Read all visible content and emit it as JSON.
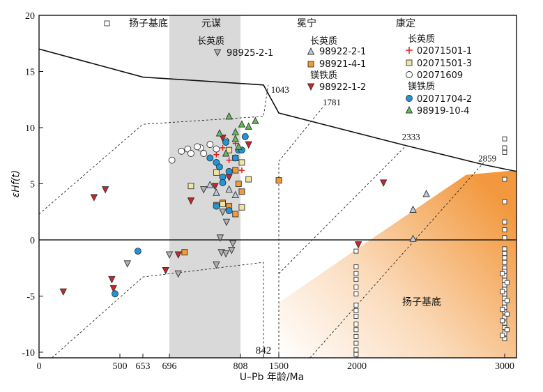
{
  "chart_data": {
    "type": "scatter",
    "xlabel": "U–Pb 年龄/Ma",
    "ylabel": "εHf(t)",
    "xlim": [
      0,
      3050
    ],
    "ylim": [
      -10.5,
      20
    ],
    "x_ticks": [
      "0",
      "500",
      "653",
      "696",
      "808",
      "842",
      "1500",
      "2000",
      "3000"
    ],
    "y_ticks": [
      "20",
      "15",
      "10",
      "5",
      "0",
      "-5",
      "-10"
    ],
    "region_labels": {
      "yangtze": "扬子基底",
      "yuanmou": "元谋",
      "mianning": "冕宁",
      "kangding": "康定"
    },
    "legend": {
      "basement": "扬子基底",
      "yuanmou_felsic_title": "长英质",
      "yuanmou_felsic": "98925-2-1",
      "mianning_felsic_title": "长英质",
      "mianning_felsic_1": "98922-2-1",
      "mianning_felsic_2": "98921-4-1",
      "mianning_mafic_title": "镁铁质",
      "mianning_mafic": "98922-1-2",
      "kangding_felsic_title": "长英质",
      "kangding_felsic_1": "02071501-1",
      "kangding_felsic_2": "02071501-3",
      "kangding_felsic_3": "02071609",
      "kangding_mafic_title": "镁铁质",
      "kangding_mafic_1": "02071704-2",
      "kangding_mafic_2": "98919-10-4"
    },
    "reference_labels": [
      "1043",
      "1781",
      "2333",
      "2859",
      "842"
    ],
    "field_label": "扬子基底",
    "colors": {
      "grey_band": "#d9d9d9",
      "basement_field": "#f2993f",
      "orange_square": "#f29a3c",
      "red_triangle": "#c8262c",
      "blue_circle": "#2096d6",
      "green_triangle": "#63ba58",
      "yellow_square": "#efe4a3",
      "grey_triangle": "#b0b0b0",
      "lightblue_triangle": "#bcc8dc",
      "red_cross": "#e31d1d"
    },
    "series": [
      {
        "name": "98925-2-1",
        "marker": "triangle-down",
        "fill": "#b0b0b0",
        "points": [
          [
            550,
            -2.1
          ],
          [
            696,
            -1.3
          ],
          [
            710,
            -3.0
          ],
          [
            770,
            -2.2
          ],
          [
            776,
            0.2
          ],
          [
            778,
            -1.1
          ],
          [
            785,
            -1.2
          ],
          [
            794,
            -0.9
          ],
          [
            796,
            -0.3
          ],
          [
            780,
            2.5
          ],
          [
            786,
            1.6
          ],
          [
            750,
            4.5
          ]
        ]
      },
      {
        "name": "98922-2-1",
        "marker": "triangle-up",
        "fill": "#bcc8dc",
        "points": [
          [
            760,
            4.9
          ],
          [
            770,
            4.2
          ],
          [
            790,
            4.5
          ],
          [
            800,
            4.0
          ],
          [
            2380,
            0.1
          ],
          [
            2380,
            2.7
          ],
          [
            2470,
            4.1
          ]
        ]
      },
      {
        "name": "98921-4-1",
        "marker": "square",
        "fill": "#f29a3c",
        "points": [
          [
            770,
            3.1
          ],
          [
            780,
            3.3
          ],
          [
            790,
            3.0
          ],
          [
            800,
            2.3
          ],
          [
            810,
            4.3
          ],
          [
            805,
            5.0
          ],
          [
            800,
            6.2
          ],
          [
            1500,
            5.3
          ],
          [
            720,
            -1.1
          ]
        ]
      },
      {
        "name": "98922-1-2",
        "marker": "triangle-down",
        "fill": "#c8262c",
        "points": [
          [
            150,
            -4.6
          ],
          [
            340,
            3.8
          ],
          [
            410,
            4.5
          ],
          [
            450,
            -3.5
          ],
          [
            460,
            -4.3
          ],
          [
            690,
            -2.7
          ],
          [
            710,
            -1.3
          ],
          [
            730,
            3.5
          ],
          [
            768,
            4.8
          ],
          [
            790,
            5.6
          ],
          [
            820,
            8.5
          ],
          [
            780,
            9.1
          ],
          [
            2010,
            -0.4
          ],
          [
            2180,
            5.1
          ]
        ]
      },
      {
        "name": "02071501-1",
        "marker": "cross",
        "fill": "#e31d1d",
        "points": [
          [
            770,
            7.6
          ],
          [
            790,
            7.1
          ],
          [
            780,
            8.2
          ],
          [
            800,
            8.6
          ],
          [
            815,
            9.2
          ],
          [
            810,
            6.2
          ]
        ]
      },
      {
        "name": "02071501-3",
        "marker": "square",
        "fill": "#efe4a3",
        "points": [
          [
            730,
            4.8
          ],
          [
            780,
            3.2
          ],
          [
            800,
            7.3
          ],
          [
            810,
            6.9
          ],
          [
            820,
            5.4
          ],
          [
            790,
            8.0
          ],
          [
            770,
            6.0
          ],
          [
            810,
            2.9
          ]
        ]
      },
      {
        "name": "02071609",
        "marker": "circle",
        "fill": "#ffffff",
        "points": [
          [
            700,
            7.1
          ],
          [
            715,
            7.9
          ],
          [
            725,
            8.1
          ],
          [
            730,
            7.7
          ],
          [
            745,
            8.2
          ],
          [
            760,
            8.5
          ],
          [
            770,
            8.1
          ],
          [
            785,
            8.8
          ],
          [
            750,
            7.7
          ],
          [
            740,
            8.3
          ]
        ]
      },
      {
        "name": "02071704-2",
        "marker": "circle",
        "fill": "#2096d6",
        "points": [
          [
            470,
            -4.8
          ],
          [
            620,
            -1.0
          ],
          [
            760,
            7.3
          ],
          [
            770,
            6.9
          ],
          [
            775,
            6.5
          ],
          [
            790,
            6.1
          ],
          [
            780,
            5.6
          ],
          [
            800,
            7.3
          ],
          [
            805,
            8.0
          ],
          [
            810,
            8.0
          ],
          [
            815,
            9.2
          ],
          [
            785,
            8.7
          ],
          [
            770,
            3.0
          ],
          [
            790,
            2.6
          ],
          [
            780,
            5.1
          ]
        ]
      },
      {
        "name": "98919-10-4",
        "marker": "triangle-up",
        "fill": "#63ba58",
        "points": [
          [
            775,
            9.5
          ],
          [
            790,
            11.0
          ],
          [
            800,
            9.6
          ],
          [
            810,
            10.3
          ],
          [
            820,
            10.1
          ],
          [
            830,
            10.6
          ],
          [
            805,
            8.3
          ],
          [
            785,
            7.7
          ],
          [
            800,
            9.0
          ]
        ]
      },
      {
        "name": "扬子基底",
        "marker": "square",
        "fill": "#ffffff",
        "points": [
          [
            1995,
            -1.0
          ],
          [
            1995,
            -2.4
          ],
          [
            1995,
            -3.0
          ],
          [
            1995,
            -3.5
          ],
          [
            1995,
            -4.2
          ],
          [
            1995,
            -4.8
          ],
          [
            1995,
            -5.8
          ],
          [
            1995,
            -6.3
          ],
          [
            1995,
            -6.8
          ],
          [
            1995,
            -7.5
          ],
          [
            1995,
            -8.0
          ],
          [
            1995,
            -8.6
          ],
          [
            1995,
            -9.2
          ],
          [
            1995,
            -9.8
          ],
          [
            1995,
            -10.2
          ],
          [
            3000,
            9.0
          ],
          [
            3000,
            8.2
          ],
          [
            3000,
            7.8
          ],
          [
            3000,
            5.4
          ],
          [
            3000,
            3.4
          ],
          [
            3000,
            1.6
          ],
          [
            3000,
            0.9
          ],
          [
            3000,
            0.2
          ],
          [
            3000,
            -0.8
          ],
          [
            3000,
            -1.2
          ],
          [
            3000,
            -1.6
          ],
          [
            3000,
            -2.0
          ],
          [
            3000,
            -2.5
          ],
          [
            3000,
            -2.8
          ],
          [
            3000,
            -3.2
          ],
          [
            3000,
            -3.6
          ],
          [
            3000,
            -4.0
          ],
          [
            3000,
            -4.4
          ],
          [
            3000,
            -4.8
          ],
          [
            3000,
            -5.2
          ],
          [
            3000,
            -5.6
          ],
          [
            3000,
            -6.0
          ],
          [
            3000,
            -6.4
          ],
          [
            3000,
            -6.9
          ],
          [
            3000,
            -7.4
          ],
          [
            3000,
            -7.8
          ],
          [
            3000,
            -8.3
          ],
          [
            3000,
            -8.8
          ],
          [
            2985,
            -3.0
          ],
          [
            2985,
            -4.6
          ],
          [
            2985,
            -6.2
          ],
          [
            2985,
            -7.2
          ],
          [
            2985,
            -8.5
          ],
          [
            3010,
            -3.8
          ],
          [
            3010,
            -5.4
          ],
          [
            3010,
            -6.6
          ],
          [
            3010,
            -8.0
          ]
        ]
      }
    ]
  }
}
